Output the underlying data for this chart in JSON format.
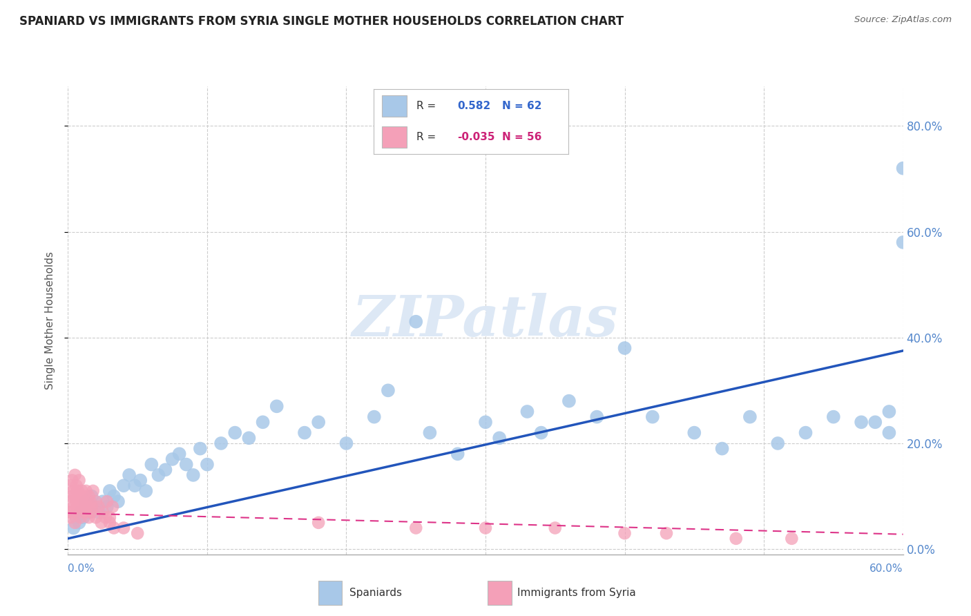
{
  "title": "SPANIARD VS IMMIGRANTS FROM SYRIA SINGLE MOTHER HOUSEHOLDS CORRELATION CHART",
  "source": "Source: ZipAtlas.com",
  "ylabel": "Single Mother Households",
  "ytick_values": [
    0.0,
    0.2,
    0.4,
    0.6,
    0.8
  ],
  "xlim": [
    0.0,
    0.6
  ],
  "ylim": [
    -0.01,
    0.875
  ],
  "blue_color": "#a8c8e8",
  "pink_color": "#f4a0b8",
  "blue_line_color": "#2255bb",
  "pink_line_color": "#dd3388",
  "blue_label_color": "#3366cc",
  "pink_label_color": "#cc2277",
  "tick_color": "#5588cc",
  "grid_color": "#cccccc",
  "background_color": "#ffffff",
  "watermark_color": "#dde8f5",
  "blue_trend_x0": 0.0,
  "blue_trend_y0": 0.02,
  "blue_trend_x1": 0.6,
  "blue_trend_y1": 0.375,
  "pink_trend_x0": 0.0,
  "pink_trend_y0": 0.068,
  "pink_trend_x1": 0.6,
  "pink_trend_y1": 0.028,
  "spaniards_x": [
    0.004,
    0.006,
    0.008,
    0.009,
    0.011,
    0.013,
    0.015,
    0.017,
    0.019,
    0.022,
    0.025,
    0.028,
    0.03,
    0.033,
    0.036,
    0.04,
    0.044,
    0.048,
    0.052,
    0.056,
    0.06,
    0.065,
    0.07,
    0.075,
    0.08,
    0.085,
    0.09,
    0.095,
    0.1,
    0.11,
    0.12,
    0.13,
    0.14,
    0.15,
    0.17,
    0.18,
    0.2,
    0.22,
    0.23,
    0.25,
    0.26,
    0.28,
    0.3,
    0.31,
    0.33,
    0.34,
    0.36,
    0.38,
    0.4,
    0.42,
    0.45,
    0.47,
    0.49,
    0.51,
    0.53,
    0.55,
    0.57,
    0.59,
    0.59,
    0.6,
    0.6,
    0.58
  ],
  "spaniards_y": [
    0.04,
    0.06,
    0.05,
    0.07,
    0.06,
    0.09,
    0.07,
    0.1,
    0.08,
    0.07,
    0.09,
    0.08,
    0.11,
    0.1,
    0.09,
    0.12,
    0.14,
    0.12,
    0.13,
    0.11,
    0.16,
    0.14,
    0.15,
    0.17,
    0.18,
    0.16,
    0.14,
    0.19,
    0.16,
    0.2,
    0.22,
    0.21,
    0.24,
    0.27,
    0.22,
    0.24,
    0.2,
    0.25,
    0.3,
    0.43,
    0.22,
    0.18,
    0.24,
    0.21,
    0.26,
    0.22,
    0.28,
    0.25,
    0.38,
    0.25,
    0.22,
    0.19,
    0.25,
    0.2,
    0.22,
    0.25,
    0.24,
    0.22,
    0.26,
    0.58,
    0.72,
    0.24
  ],
  "syria_x": [
    0.001,
    0.002,
    0.002,
    0.003,
    0.003,
    0.004,
    0.004,
    0.005,
    0.005,
    0.006,
    0.006,
    0.007,
    0.007,
    0.008,
    0.008,
    0.009,
    0.01,
    0.01,
    0.011,
    0.012,
    0.013,
    0.014,
    0.015,
    0.016,
    0.017,
    0.018,
    0.02,
    0.022,
    0.025,
    0.028,
    0.03,
    0.032,
    0.18,
    0.25,
    0.3,
    0.35,
    0.4,
    0.43,
    0.48,
    0.52,
    0.002,
    0.003,
    0.005,
    0.007,
    0.009,
    0.011,
    0.013,
    0.015,
    0.017,
    0.02,
    0.024,
    0.027,
    0.03,
    0.033,
    0.04,
    0.05
  ],
  "syria_y": [
    0.07,
    0.09,
    0.12,
    0.1,
    0.13,
    0.08,
    0.11,
    0.1,
    0.14,
    0.09,
    0.12,
    0.11,
    0.08,
    0.1,
    0.13,
    0.09,
    0.11,
    0.07,
    0.1,
    0.09,
    0.11,
    0.08,
    0.1,
    0.09,
    0.08,
    0.11,
    0.09,
    0.08,
    0.07,
    0.09,
    0.06,
    0.08,
    0.05,
    0.04,
    0.04,
    0.04,
    0.03,
    0.03,
    0.02,
    0.02,
    0.06,
    0.07,
    0.05,
    0.08,
    0.06,
    0.08,
    0.07,
    0.06,
    0.07,
    0.06,
    0.05,
    0.06,
    0.05,
    0.04,
    0.04,
    0.03
  ]
}
